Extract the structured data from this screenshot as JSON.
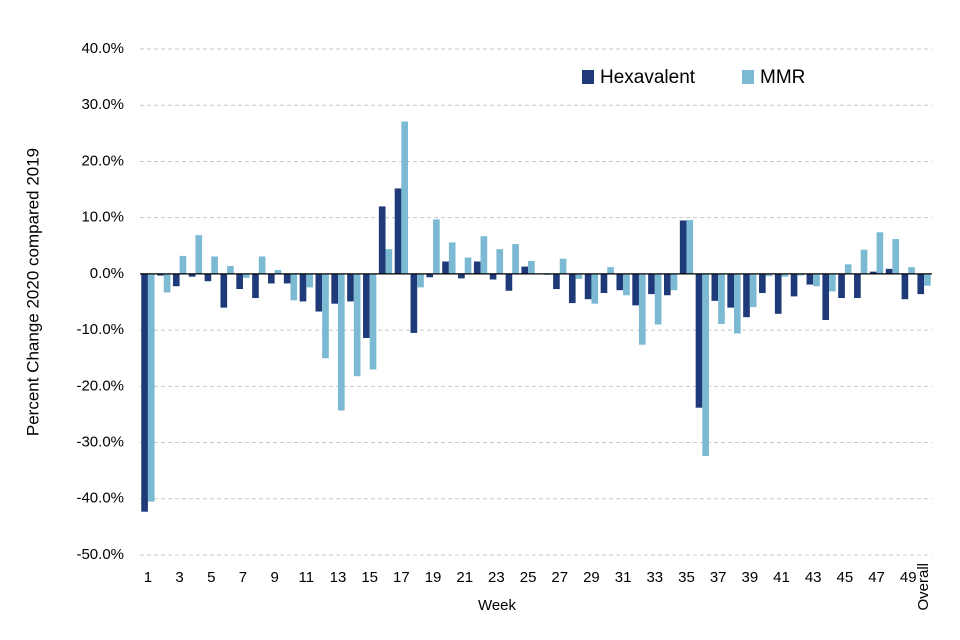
{
  "chart_data": {
    "type": "bar",
    "y_label": "Percent Change 2020 compared 2019",
    "x_label": "Week",
    "categories": [
      "1",
      null,
      "3",
      null,
      "5",
      null,
      "7",
      null,
      "9",
      null,
      "11",
      null,
      "13",
      null,
      "15",
      null,
      "17",
      null,
      "19",
      null,
      "21",
      null,
      "23",
      null,
      "25",
      null,
      "27",
      null,
      "29",
      null,
      "31",
      null,
      "33",
      null,
      "35",
      null,
      "37",
      null,
      "39",
      null,
      "41",
      null,
      "43",
      null,
      "45",
      null,
      "47",
      null,
      "49",
      "Overall"
    ],
    "series": [
      {
        "name": "Hexavalent",
        "color": "#1f3a78",
        "values": [
          -42.3,
          -0.3,
          -2.2,
          -0.5,
          -1.3,
          -6.0,
          -2.7,
          -4.3,
          -1.7,
          -1.7,
          -4.9,
          -6.7,
          -5.3,
          -4.9,
          -11.4,
          12.0,
          15.2,
          -10.5,
          -0.6,
          2.2,
          -0.8,
          2.2,
          -1.0,
          -3.0,
          1.3,
          0.0,
          -2.7,
          -5.2,
          -4.5,
          -3.4,
          -2.9,
          -5.6,
          -3.6,
          -3.8,
          9.5,
          -23.8,
          -4.8,
          -6.0,
          -7.7,
          -3.4,
          -7.1,
          -4.0,
          -1.9,
          -8.2,
          -4.3,
          -4.3,
          0.4,
          0.9,
          -4.5,
          -3.6
        ]
      },
      {
        "name": "MMR",
        "color": "#7cb9d3",
        "values": [
          -40.5,
          -3.3,
          3.2,
          6.9,
          3.1,
          1.4,
          -0.7,
          3.1,
          0.7,
          -4.7,
          -2.4,
          -15.0,
          -24.3,
          -18.2,
          -17.0,
          4.4,
          27.1,
          -2.4,
          9.7,
          5.6,
          2.9,
          6.7,
          4.4,
          5.3,
          2.3,
          -0.2,
          2.7,
          -0.9,
          -5.3,
          1.2,
          -3.8,
          -12.6,
          -9.0,
          -2.9,
          9.6,
          -32.4,
          -8.9,
          -10.6,
          -5.9,
          -0.4,
          -0.5,
          -0.3,
          -2.2,
          -3.1,
          1.7,
          4.3,
          7.4,
          6.2,
          1.2,
          -2.1
        ]
      }
    ],
    "ylim": [
      -50,
      40
    ],
    "yticks": [
      {
        "value": -50,
        "label": "-50.0%"
      },
      {
        "value": -40,
        "label": "-40.0%"
      },
      {
        "value": -30,
        "label": "-30.0%"
      },
      {
        "value": -20,
        "label": "-20.0%"
      },
      {
        "value": -10,
        "label": "-10.0%"
      },
      {
        "value": 0,
        "label": "0.0%"
      },
      {
        "value": 10,
        "label": "10.0%"
      },
      {
        "value": 20,
        "label": "20.0%"
      },
      {
        "value": 30,
        "label": "30.0%"
      },
      {
        "value": 40,
        "label": "40.0%"
      }
    ],
    "grid": true,
    "legend": "top-right"
  }
}
